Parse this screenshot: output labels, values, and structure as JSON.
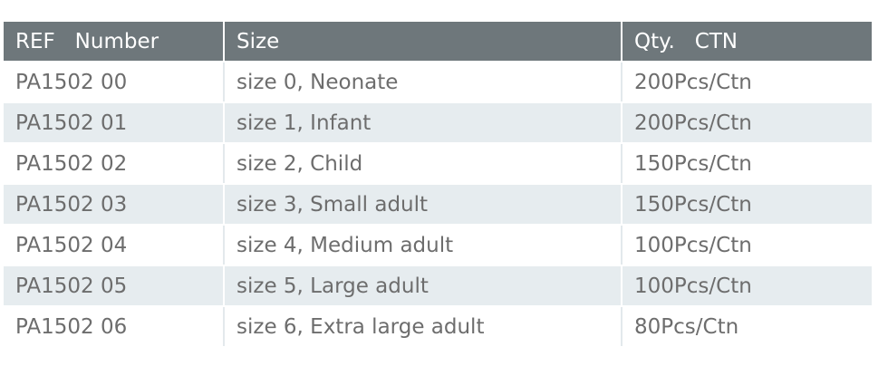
{
  "table": {
    "headers": [
      "REF   Number",
      "Size",
      "Qty.   CTN"
    ],
    "rows": [
      [
        "PA1502 00",
        "size 0, Neonate",
        "200Pcs/Ctn"
      ],
      [
        "PA1502 01",
        "size 1, Infant",
        "200Pcs/Ctn"
      ],
      [
        "PA1502 02",
        "size 2, Child",
        "150Pcs/Ctn"
      ],
      [
        "PA1502 03",
        "size 3, Small adult",
        "150Pcs/Ctn"
      ],
      [
        "PA1502 04",
        "size 4, Medium adult",
        "100Pcs/Ctn"
      ],
      [
        "PA1502 05",
        "size 5, Large adult",
        "100Pcs/Ctn"
      ],
      [
        "PA1502 06",
        "size 6, Extra large adult",
        "80Pcs/Ctn"
      ]
    ]
  },
  "colors": {
    "header_bg": "#6e777b",
    "header_text": "#ffffff",
    "stripe_bg": "#e6ecef",
    "cell_text": "#6d6d6d"
  }
}
